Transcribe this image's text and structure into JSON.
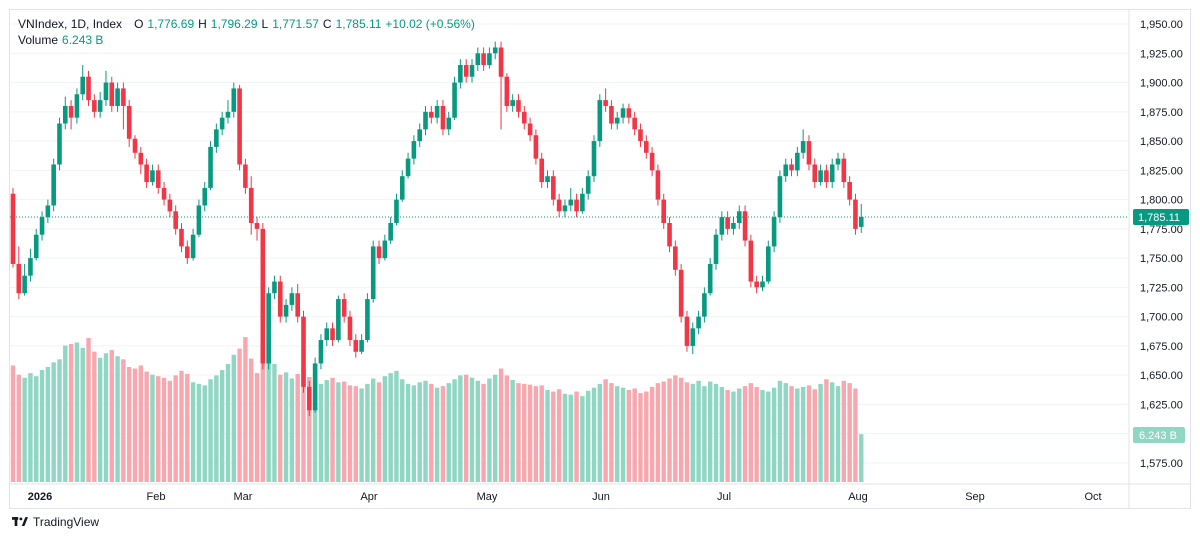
{
  "legend": {
    "symbol": "VNIndex, 1D, Index",
    "open_key": "O",
    "open": "1,776.69",
    "high_key": "H",
    "high": "1,796.29",
    "low_key": "L",
    "low": "1,771.57",
    "close_key": "C",
    "close": "1,785.11",
    "change": "+10.02 (+0.56%)",
    "volume_label": "Volume",
    "volume_value": "6.243 B"
  },
  "footer": {
    "brand": "TradingView"
  },
  "colors": {
    "up": "#089981",
    "down": "#f23645",
    "up_volume": "#8fd6c3",
    "down_volume": "#f7a7ad",
    "grid": "#f0f3fa",
    "last_price_line": "#089981"
  },
  "chart_data": {
    "type": "candlestick",
    "title": "VNIndex, 1D, Index",
    "y_axis": {
      "ticks": [
        1575,
        1600,
        1625,
        1650,
        1675,
        1700,
        1725,
        1750,
        1775,
        1800,
        1825,
        1850,
        1875,
        1900,
        1925,
        1950
      ],
      "tick_labels": [
        "1,575.00",
        "1,600.00",
        "1,625.00",
        "1,650.00",
        "1,675.00",
        "1,700.00",
        "1,725.00",
        "1,750.00",
        "1,775.00",
        "1,800.00",
        "1,825.00",
        "1,850.00",
        "1,875.00",
        "1,900.00",
        "1,925.00",
        "1,950.00"
      ],
      "range": [
        1557,
        1962
      ]
    },
    "x_axis": {
      "labels": [
        "2026",
        "Feb",
        "Mar",
        "Apr",
        "May",
        "Jun",
        "Jul",
        "Aug",
        "Sep",
        "Oct"
      ],
      "bold_label": "2026"
    },
    "last_price": 1785.11,
    "last_price_label": "1,785.11",
    "last_volume_label": "6.243 B",
    "volume_axis_max_billion": 15,
    "series": [
      {
        "name": "VNIndex",
        "candles": [
          [
            1805,
            1745,
            1810,
            1742,
            15.2
          ],
          [
            1745,
            1720,
            1760,
            1715,
            14.0
          ],
          [
            1720,
            1735,
            1745,
            1718,
            13.6
          ],
          [
            1735,
            1750,
            1758,
            1730,
            14.2
          ],
          [
            1750,
            1770,
            1775,
            1748,
            13.8
          ],
          [
            1770,
            1785,
            1790,
            1765,
            14.6
          ],
          [
            1785,
            1795,
            1800,
            1780,
            15.0
          ],
          [
            1795,
            1830,
            1835,
            1790,
            15.6
          ],
          [
            1830,
            1865,
            1870,
            1825,
            16.0
          ],
          [
            1865,
            1880,
            1888,
            1860,
            17.8
          ],
          [
            1880,
            1870,
            1885,
            1860,
            18.0
          ],
          [
            1870,
            1890,
            1895,
            1865,
            18.2
          ],
          [
            1890,
            1905,
            1915,
            1885,
            17.5
          ],
          [
            1905,
            1885,
            1910,
            1880,
            18.8
          ],
          [
            1885,
            1875,
            1890,
            1870,
            17.0
          ],
          [
            1875,
            1885,
            1892,
            1870,
            16.2
          ],
          [
            1885,
            1900,
            1910,
            1880,
            16.8
          ],
          [
            1900,
            1880,
            1905,
            1875,
            17.2
          ],
          [
            1880,
            1895,
            1900,
            1875,
            16.4
          ],
          [
            1895,
            1880,
            1900,
            1860,
            16.0
          ],
          [
            1880,
            1852,
            1885,
            1845,
            15.0
          ],
          [
            1852,
            1840,
            1855,
            1835,
            14.8
          ],
          [
            1840,
            1830,
            1845,
            1822,
            15.2
          ],
          [
            1830,
            1815,
            1835,
            1810,
            14.4
          ],
          [
            1815,
            1825,
            1830,
            1812,
            14.0
          ],
          [
            1825,
            1810,
            1830,
            1805,
            13.8
          ],
          [
            1810,
            1800,
            1815,
            1795,
            13.6
          ],
          [
            1800,
            1790,
            1805,
            1785,
            13.2
          ],
          [
            1790,
            1775,
            1795,
            1770,
            13.9
          ],
          [
            1775,
            1760,
            1780,
            1755,
            14.5
          ],
          [
            1760,
            1750,
            1765,
            1745,
            14.1
          ],
          [
            1750,
            1770,
            1775,
            1748,
            13.0
          ],
          [
            1770,
            1795,
            1800,
            1768,
            12.8
          ],
          [
            1795,
            1810,
            1815,
            1790,
            12.6
          ],
          [
            1810,
            1845,
            1850,
            1808,
            13.4
          ],
          [
            1845,
            1860,
            1865,
            1840,
            13.9
          ],
          [
            1860,
            1870,
            1875,
            1855,
            14.6
          ],
          [
            1870,
            1875,
            1885,
            1865,
            15.4
          ],
          [
            1875,
            1895,
            1900,
            1870,
            16.6
          ],
          [
            1895,
            1830,
            1898,
            1825,
            17.4
          ],
          [
            1830,
            1810,
            1835,
            1805,
            18.9
          ],
          [
            1810,
            1780,
            1820,
            1770,
            16.1
          ],
          [
            1780,
            1775,
            1785,
            1765,
            14.2
          ],
          [
            1775,
            1660,
            1780,
            1655,
            16.4
          ],
          [
            1660,
            1720,
            1725,
            1655,
            17.8
          ],
          [
            1720,
            1730,
            1735,
            1715,
            15.4
          ],
          [
            1730,
            1700,
            1735,
            1695,
            14.0
          ],
          [
            1700,
            1710,
            1715,
            1695,
            14.3
          ],
          [
            1710,
            1720,
            1725,
            1705,
            13.5
          ],
          [
            1720,
            1700,
            1728,
            1695,
            14.1
          ],
          [
            1700,
            1640,
            1705,
            1635,
            14.6
          ],
          [
            1640,
            1620,
            1645,
            1615,
            13.7
          ],
          [
            1620,
            1660,
            1665,
            1618,
            13.2
          ],
          [
            1660,
            1680,
            1685,
            1655,
            12.8
          ],
          [
            1680,
            1690,
            1695,
            1675,
            13.3
          ],
          [
            1690,
            1680,
            1695,
            1675,
            13.6
          ],
          [
            1680,
            1715,
            1718,
            1678,
            13.0
          ],
          [
            1715,
            1700,
            1720,
            1695,
            13.1
          ],
          [
            1700,
            1680,
            1705,
            1675,
            12.6
          ],
          [
            1680,
            1670,
            1685,
            1665,
            12.5
          ],
          [
            1670,
            1680,
            1685,
            1668,
            12.2
          ],
          [
            1680,
            1715,
            1720,
            1678,
            12.8
          ],
          [
            1715,
            1760,
            1765,
            1712,
            13.5
          ],
          [
            1760,
            1750,
            1765,
            1745,
            13.0
          ],
          [
            1750,
            1765,
            1770,
            1748,
            13.8
          ],
          [
            1765,
            1780,
            1785,
            1762,
            14.2
          ],
          [
            1780,
            1800,
            1805,
            1778,
            14.5
          ],
          [
            1800,
            1820,
            1825,
            1798,
            13.4
          ],
          [
            1820,
            1835,
            1840,
            1818,
            12.8
          ],
          [
            1835,
            1850,
            1855,
            1830,
            12.6
          ],
          [
            1850,
            1860,
            1865,
            1845,
            13.0
          ],
          [
            1860,
            1875,
            1880,
            1855,
            13.2
          ],
          [
            1875,
            1870,
            1880,
            1865,
            12.8
          ],
          [
            1870,
            1880,
            1885,
            1865,
            12.3
          ],
          [
            1880,
            1860,
            1885,
            1855,
            12.5
          ],
          [
            1860,
            1870,
            1875,
            1855,
            12.9
          ],
          [
            1870,
            1900,
            1905,
            1868,
            13.4
          ],
          [
            1900,
            1915,
            1920,
            1895,
            13.9
          ],
          [
            1915,
            1905,
            1920,
            1900,
            14.0
          ],
          [
            1905,
            1915,
            1920,
            1900,
            13.6
          ],
          [
            1915,
            1925,
            1930,
            1910,
            13.2
          ],
          [
            1925,
            1915,
            1930,
            1910,
            12.8
          ],
          [
            1915,
            1925,
            1930,
            1912,
            13.5
          ],
          [
            1925,
            1930,
            1935,
            1920,
            14.0
          ],
          [
            1930,
            1905,
            1935,
            1860,
            14.8
          ],
          [
            1905,
            1880,
            1908,
            1875,
            13.9
          ],
          [
            1880,
            1885,
            1890,
            1875,
            13.3
          ],
          [
            1885,
            1875,
            1890,
            1870,
            12.9
          ],
          [
            1875,
            1865,
            1880,
            1860,
            12.8
          ],
          [
            1865,
            1855,
            1870,
            1850,
            12.7
          ],
          [
            1855,
            1835,
            1860,
            1830,
            12.5
          ],
          [
            1835,
            1815,
            1840,
            1810,
            12.6
          ],
          [
            1815,
            1820,
            1825,
            1810,
            12.0
          ],
          [
            1820,
            1800,
            1825,
            1795,
            11.8
          ],
          [
            1800,
            1790,
            1805,
            1785,
            12.1
          ],
          [
            1790,
            1795,
            1800,
            1785,
            11.5
          ],
          [
            1795,
            1800,
            1810,
            1790,
            11.4
          ],
          [
            1800,
            1790,
            1805,
            1785,
            11.8
          ],
          [
            1790,
            1805,
            1810,
            1788,
            11.2
          ],
          [
            1805,
            1820,
            1825,
            1800,
            11.9
          ],
          [
            1820,
            1850,
            1855,
            1815,
            12.3
          ],
          [
            1850,
            1885,
            1890,
            1845,
            12.8
          ],
          [
            1885,
            1880,
            1895,
            1875,
            13.4
          ],
          [
            1880,
            1865,
            1885,
            1860,
            12.9
          ],
          [
            1865,
            1870,
            1875,
            1860,
            12.5
          ],
          [
            1870,
            1878,
            1882,
            1865,
            12.3
          ],
          [
            1878,
            1870,
            1882,
            1865,
            12.0
          ],
          [
            1870,
            1860,
            1875,
            1855,
            12.2
          ],
          [
            1860,
            1850,
            1865,
            1845,
            11.6
          ],
          [
            1850,
            1840,
            1855,
            1835,
            11.8
          ],
          [
            1840,
            1825,
            1845,
            1820,
            12.4
          ],
          [
            1825,
            1800,
            1830,
            1795,
            12.9
          ],
          [
            1800,
            1780,
            1805,
            1775,
            13.1
          ],
          [
            1780,
            1760,
            1785,
            1755,
            13.5
          ],
          [
            1760,
            1740,
            1765,
            1735,
            13.9
          ],
          [
            1740,
            1700,
            1745,
            1695,
            13.6
          ],
          [
            1700,
            1675,
            1705,
            1670,
            13.0
          ],
          [
            1675,
            1690,
            1695,
            1668,
            12.8
          ],
          [
            1690,
            1700,
            1705,
            1685,
            13.2
          ],
          [
            1700,
            1720,
            1725,
            1695,
            12.5
          ],
          [
            1720,
            1745,
            1750,
            1718,
            13.1
          ],
          [
            1745,
            1770,
            1775,
            1740,
            12.8
          ],
          [
            1770,
            1785,
            1790,
            1765,
            12.4
          ],
          [
            1785,
            1775,
            1790,
            1770,
            12.0
          ],
          [
            1775,
            1780,
            1785,
            1770,
            11.8
          ],
          [
            1780,
            1790,
            1795,
            1775,
            12.2
          ],
          [
            1790,
            1765,
            1795,
            1760,
            12.5
          ],
          [
            1765,
            1730,
            1770,
            1725,
            12.9
          ],
          [
            1730,
            1725,
            1735,
            1720,
            12.4
          ],
          [
            1725,
            1730,
            1735,
            1722,
            12.0
          ],
          [
            1730,
            1760,
            1765,
            1728,
            11.8
          ],
          [
            1760,
            1785,
            1790,
            1755,
            12.3
          ],
          [
            1785,
            1820,
            1825,
            1780,
            13.2
          ],
          [
            1820,
            1830,
            1835,
            1815,
            12.9
          ],
          [
            1830,
            1825,
            1835,
            1820,
            12.5
          ],
          [
            1825,
            1840,
            1845,
            1820,
            12.2
          ],
          [
            1840,
            1850,
            1860,
            1835,
            12.4
          ],
          [
            1850,
            1830,
            1855,
            1825,
            12.6
          ],
          [
            1830,
            1815,
            1835,
            1810,
            12.1
          ],
          [
            1815,
            1825,
            1830,
            1812,
            12.8
          ],
          [
            1825,
            1815,
            1830,
            1810,
            13.4
          ],
          [
            1815,
            1830,
            1835,
            1810,
            13.0
          ],
          [
            1830,
            1835,
            1840,
            1825,
            12.5
          ],
          [
            1835,
            1815,
            1840,
            1810,
            13.2
          ],
          [
            1815,
            1800,
            1820,
            1795,
            12.9
          ],
          [
            1800,
            1775,
            1805,
            1770,
            12.2
          ],
          [
            1776.69,
            1785.11,
            1796.29,
            1771.57,
            6.243
          ]
        ]
      }
    ]
  }
}
